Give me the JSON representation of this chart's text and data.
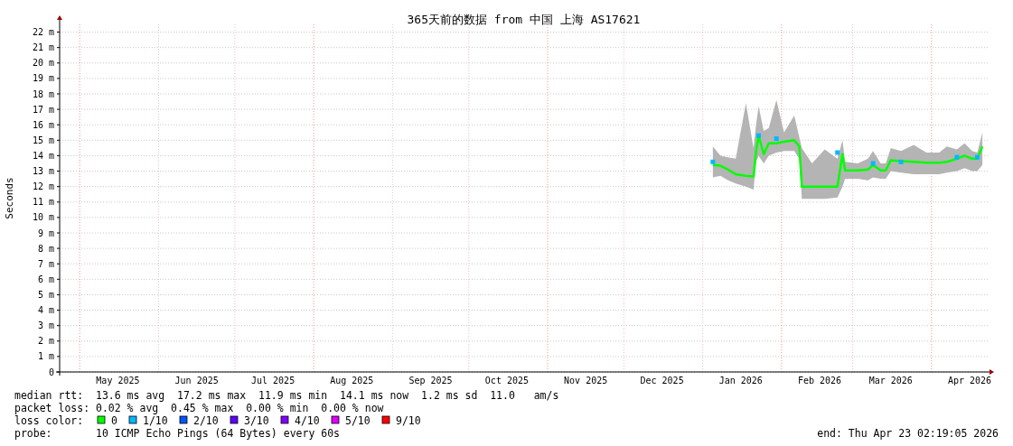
{
  "chart_data": {
    "type": "line",
    "title": "365天前的数据 from 中国 上海 AS17621",
    "ylabel": "Seconds",
    "xlim": [
      "2025-04-23T02:19",
      "2026-04-23T02:19"
    ],
    "xticks": [
      {
        "value": "2025-05-16",
        "label": "May 2025"
      },
      {
        "value": "2025-06-16",
        "label": "Jun 2025"
      },
      {
        "value": "2025-07-16",
        "label": "Jul 2025"
      },
      {
        "value": "2025-08-16",
        "label": "Aug 2025"
      },
      {
        "value": "2025-09-16",
        "label": "Sep 2025"
      },
      {
        "value": "2025-10-16",
        "label": "Oct 2025"
      },
      {
        "value": "2025-11-16",
        "label": "Nov 2025"
      },
      {
        "value": "2025-12-16",
        "label": "Dec 2025"
      },
      {
        "value": "2026-01-16",
        "label": "Jan 2026"
      },
      {
        "value": "2026-02-16",
        "label": "Feb 2026"
      },
      {
        "value": "2026-03-16",
        "label": "Mar 2026"
      },
      {
        "value": "2026-04-16",
        "label": "Apr 2026"
      }
    ],
    "ylim": [
      0,
      22.5
    ],
    "yticks": [
      0,
      {
        "value": 1,
        "label": "1 m"
      },
      {
        "value": 2,
        "label": "2 m"
      },
      {
        "value": 3,
        "label": "3 m"
      },
      {
        "value": 4,
        "label": "4 m"
      },
      {
        "value": 5,
        "label": "5 m"
      },
      {
        "value": 6,
        "label": "6 m"
      },
      {
        "value": 7,
        "label": "7 m"
      },
      {
        "value": 8,
        "label": "8 m"
      },
      {
        "value": 9,
        "label": "9 m"
      },
      {
        "value": 10,
        "label": "10 m"
      },
      {
        "value": 11,
        "label": "11 m"
      },
      {
        "value": 12,
        "label": "12 m"
      },
      {
        "value": 13,
        "label": "13 m"
      },
      {
        "value": 14,
        "label": "14 m"
      },
      {
        "value": 15,
        "label": "15 m"
      },
      {
        "value": 16,
        "label": "16 m"
      },
      {
        "value": 17,
        "label": "17 m"
      },
      {
        "value": 18,
        "label": "18 m"
      },
      {
        "value": 19,
        "label": "19 m"
      },
      {
        "value": 20,
        "label": "20 m"
      },
      {
        "value": 21,
        "label": "21 m"
      },
      {
        "value": 22,
        "label": "22 m"
      }
    ],
    "grid": true,
    "legend": "bottom",
    "legend_title": "loss color:",
    "ref_lines": [
      {
        "axis": "x",
        "value": "2025-05-01",
        "color": "#ff9090",
        "line_style": "dotted"
      },
      {
        "axis": "x",
        "value": "2025-08-01",
        "color": "#ff9090",
        "line_style": "dotted"
      },
      {
        "axis": "x",
        "value": "2025-11-01",
        "color": "#ff9090",
        "line_style": "dotted"
      },
      {
        "axis": "x",
        "value": "2026-02-01",
        "color": "#ff9090",
        "line_style": "dotted"
      },
      {
        "axis": "x",
        "value": "2026-04-01",
        "color": "#ff9090",
        "line_style": "dotted"
      },
      {
        "axis": "x",
        "value": "2025-06-01",
        "color": "#f0c0c0",
        "line_style": "dotted"
      },
      {
        "axis": "x",
        "value": "2025-07-01",
        "color": "#f0c0c0",
        "line_style": "dotted"
      },
      {
        "axis": "x",
        "value": "2025-09-01",
        "color": "#f0c0c0",
        "line_style": "dotted"
      },
      {
        "axis": "x",
        "value": "2025-10-01",
        "color": "#f0c0c0",
        "line_style": "dotted"
      },
      {
        "axis": "x",
        "value": "2025-12-01",
        "color": "#f0c0c0",
        "line_style": "dotted"
      },
      {
        "axis": "x",
        "value": "2026-01-01",
        "color": "#f0c0c0",
        "line_style": "dotted"
      },
      {
        "axis": "x",
        "value": "2026-03-01",
        "color": "#f0c0c0",
        "line_style": "dotted"
      }
    ],
    "series": [
      {
        "name": "0",
        "type": "line",
        "color": "#00ff00",
        "marker": "none",
        "x": [
          "2026-01-05",
          "2026-01-08",
          "2026-01-11",
          "2026-01-14",
          "2026-01-18",
          "2026-01-21",
          "2026-01-22",
          "2026-01-23",
          "2026-01-25",
          "2026-01-27",
          "2026-01-30",
          "2026-02-02",
          "2026-02-06",
          "2026-02-08",
          "2026-02-09",
          "2026-02-13",
          "2026-02-18",
          "2026-02-23",
          "2026-02-25",
          "2026-02-26",
          "2026-03-03",
          "2026-03-07",
          "2026-03-09",
          "2026-03-12",
          "2026-03-14",
          "2026-03-16",
          "2026-03-20",
          "2026-03-25",
          "2026-03-30",
          "2026-04-04",
          "2026-04-07",
          "2026-04-11",
          "2026-04-14",
          "2026-04-17",
          "2026-04-19",
          "2026-04-21"
        ],
        "values": [
          13.4,
          13.35,
          13.1,
          12.8,
          12.7,
          12.65,
          14.3,
          15.3,
          14.1,
          14.8,
          14.8,
          14.9,
          15.0,
          14.6,
          12.0,
          12.0,
          12.0,
          12.0,
          14.1,
          13.05,
          13.05,
          13.1,
          13.4,
          13.05,
          13.05,
          13.7,
          13.65,
          13.6,
          13.55,
          13.55,
          13.6,
          13.8,
          14.0,
          13.8,
          13.8,
          14.6
        ],
        "lower": [
          12.6,
          12.7,
          12.4,
          12.2,
          12.0,
          11.8,
          13.6,
          14.0,
          13.5,
          14.0,
          14.2,
          14.3,
          14.3,
          13.8,
          11.2,
          11.2,
          11.2,
          11.3,
          12.0,
          12.5,
          12.5,
          12.4,
          12.6,
          12.5,
          12.5,
          13.0,
          12.9,
          12.8,
          12.8,
          12.8,
          12.9,
          13.0,
          13.2,
          13.0,
          13.0,
          13.4
        ],
        "upper": [
          14.6,
          14.0,
          13.9,
          13.8,
          17.4,
          14.5,
          16.0,
          17.2,
          15.6,
          15.8,
          17.6,
          15.5,
          16.6,
          15.2,
          14.5,
          13.5,
          14.4,
          13.8,
          15.0,
          13.6,
          13.5,
          13.8,
          14.3,
          13.5,
          13.5,
          14.5,
          14.3,
          14.7,
          14.2,
          14.2,
          14.6,
          14.4,
          14.8,
          14.3,
          14.2,
          15.5
        ]
      },
      {
        "name": "1/10",
        "type": "scatter",
        "color": "#00b8ff",
        "marker": "square",
        "x": [
          "2026-01-05",
          "2026-01-23",
          "2026-01-30",
          "2026-02-23",
          "2026-03-09",
          "2026-03-20",
          "2026-04-11",
          "2026-04-19"
        ],
        "values": [
          13.6,
          15.3,
          15.1,
          14.2,
          13.5,
          13.6,
          13.9,
          13.9
        ]
      },
      {
        "name": "2/10",
        "type": "scatter",
        "color": "#0055ff",
        "marker": "square"
      },
      {
        "name": "3/10",
        "type": "scatter",
        "color": "#5e00ff",
        "marker": "square"
      },
      {
        "name": "4/10",
        "type": "scatter",
        "color": "#8000ff",
        "marker": "square"
      },
      {
        "name": "5/10",
        "type": "scatter",
        "color": "#dd00ff",
        "marker": "square"
      },
      {
        "name": "9/10",
        "type": "scatter",
        "color": "#ff0000",
        "marker": "square"
      }
    ],
    "annotations": [
      "median rtt:  13.6 ms avg  17.2 ms max  11.9 ms min  14.1 ms now  1.2 ms sd  11.0   am/s",
      "packet loss: 0.02 % avg  0.45 % max  0.00 % min  0.00 % now",
      "probe:       10 ICMP Echo Pings (64 Bytes) every 60s",
      "end: Thu Apr 23 02:19:05 2026"
    ]
  }
}
